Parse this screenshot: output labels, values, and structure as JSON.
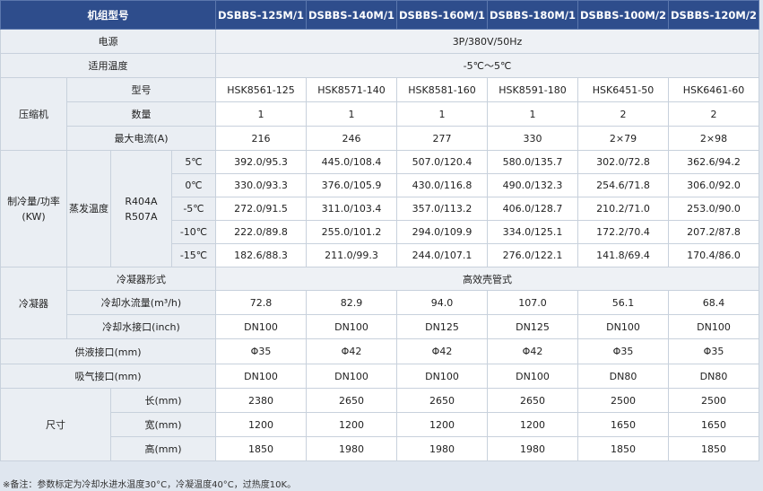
{
  "header": {
    "label": "机组型号",
    "models": [
      "DSBBS-125M/1",
      "DSBBS-140M/1",
      "DSBBS-160M/1",
      "DSBBS-180M/1",
      "DSBBS-100M/2",
      "DSBBS-120M/2"
    ]
  },
  "power": {
    "label": "电源",
    "value": "3P/380V/50Hz"
  },
  "temp_range": {
    "label": "适用温度",
    "value": "-5℃～5℃"
  },
  "compressor": {
    "label": "压缩机",
    "model_label": "型号",
    "models": [
      "HSK8561-125",
      "HSK8571-140",
      "HSK8581-160",
      "HSK8591-180",
      "HSK6451-50",
      "HSK6461-60"
    ],
    "qty_label": "数量",
    "qty": [
      "1",
      "1",
      "1",
      "1",
      "2",
      "2"
    ],
    "current_label": "最大电流(A)",
    "current": [
      "216",
      "246",
      "277",
      "330",
      "2×79",
      "2×98"
    ]
  },
  "cooling": {
    "label": "制冷量/功率(KW)",
    "evap_label": "蒸发温度",
    "refrigerant": "R404A R507A",
    "rows": [
      {
        "temp": "5℃",
        "values": [
          "392.0/95.3",
          "445.0/108.4",
          "507.0/120.4",
          "580.0/135.7",
          "302.0/72.8",
          "362.6/94.2"
        ]
      },
      {
        "temp": "0℃",
        "values": [
          "330.0/93.3",
          "376.0/105.9",
          "430.0/116.8",
          "490.0/132.3",
          "254.6/71.8",
          "306.0/92.0"
        ]
      },
      {
        "temp": "-5℃",
        "values": [
          "272.0/91.5",
          "311.0/103.4",
          "357.0/113.2",
          "406.0/128.7",
          "210.2/71.0",
          "253.0/90.0"
        ]
      },
      {
        "temp": "-10℃",
        "values": [
          "222.0/89.8",
          "255.0/101.2",
          "294.0/109.9",
          "334.0/125.1",
          "172.2/70.4",
          "207.2/87.8"
        ]
      },
      {
        "temp": "-15℃",
        "values": [
          "182.6/88.3",
          "211.0/99.3",
          "244.0/107.1",
          "276.0/122.1",
          "141.8/69.4",
          "170.4/86.0"
        ]
      }
    ]
  },
  "condenser": {
    "label": "冷凝器",
    "type_label": "冷凝器形式",
    "type_value": "高效壳管式",
    "flow_label": "冷却水流量(m³/h)",
    "flow": [
      "72.8",
      "82.9",
      "94.0",
      "107.0",
      "56.1",
      "68.4"
    ],
    "port_label": "冷却水接口(inch)",
    "port": [
      "DN100",
      "DN100",
      "DN125",
      "DN125",
      "DN100",
      "DN100"
    ]
  },
  "supply": {
    "label": "供液接口(mm)",
    "values": [
      "Φ35",
      "Φ42",
      "Φ42",
      "Φ42",
      "Φ35",
      "Φ35"
    ]
  },
  "suction": {
    "label": "吸气接口(mm)",
    "values": [
      "DN100",
      "DN100",
      "DN100",
      "DN100",
      "DN80",
      "DN80"
    ]
  },
  "dimensions": {
    "label": "尺寸",
    "rows": [
      {
        "label": "长(mm)",
        "values": [
          "2380",
          "2650",
          "2650",
          "2650",
          "2500",
          "2500"
        ]
      },
      {
        "label": "宽(mm)",
        "values": [
          "1200",
          "1200",
          "1200",
          "1200",
          "1650",
          "1650"
        ]
      },
      {
        "label": "高(mm)",
        "values": [
          "1850",
          "1980",
          "1980",
          "1980",
          "1850",
          "1850"
        ]
      }
    ]
  },
  "footnote": "※备注：参数标定为冷却水进水温度30°C，冷凝温度40°C，过热度10K。"
}
